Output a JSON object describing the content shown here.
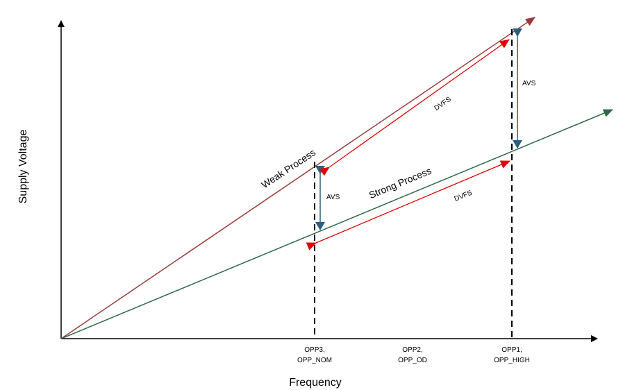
{
  "axes": {
    "x_title": "Frequency",
    "y_title": "Supply Voltage"
  },
  "curves": {
    "weak": {
      "label": "Weak Process",
      "color": "#9b3a3a"
    },
    "strong": {
      "label": "Strong Process",
      "color": "#2e6b45"
    }
  },
  "arrows": {
    "avs_color": "#2a5f80",
    "dvfs_color": "#e00000"
  },
  "annotations": {
    "avs_low": "AVS",
    "avs_high": "AVS",
    "dvfs_upper": "DVFS",
    "dvfs_lower": "DVFS"
  },
  "operating_points": [
    {
      "line1": "OPP3,",
      "line2": "OPP_NOM"
    },
    {
      "line1": "OPP2,",
      "line2": "OPP_OD"
    },
    {
      "line1": "OPP1,",
      "line2": "OPP_HIGH"
    }
  ]
}
